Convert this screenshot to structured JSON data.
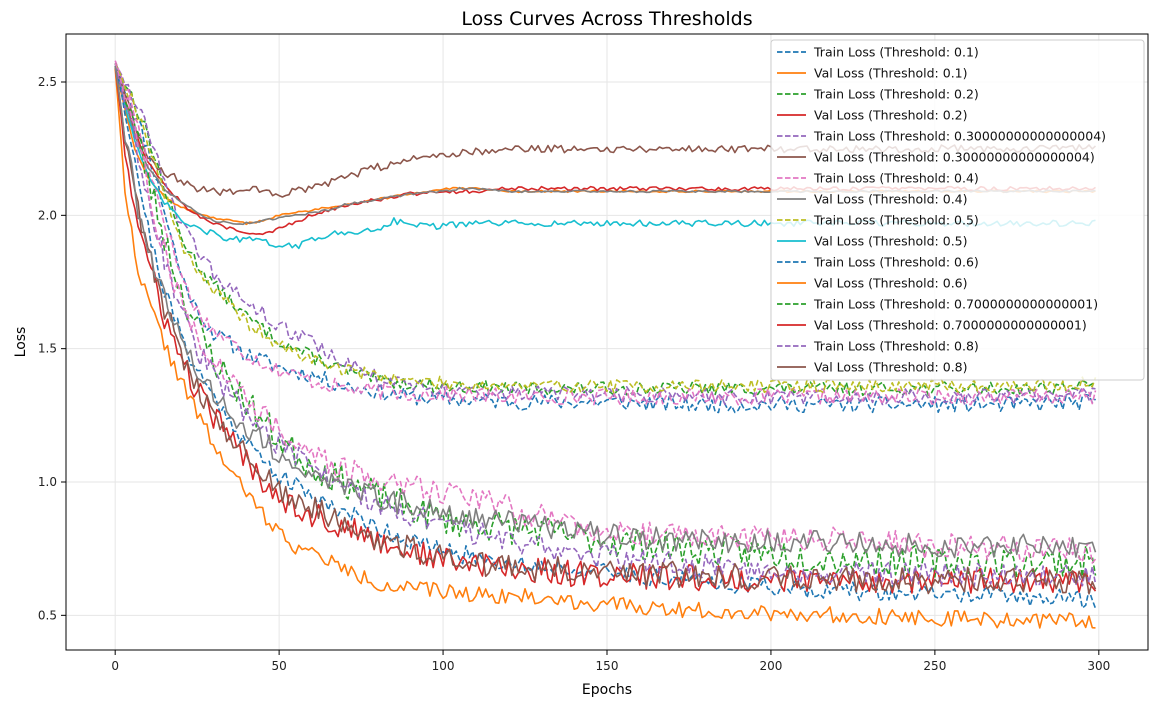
{
  "chart_data": {
    "type": "line",
    "title": "Loss Curves Across Thresholds",
    "xlabel": "Epochs",
    "ylabel": "Loss",
    "xlim": [
      -15,
      315
    ],
    "ylim": [
      0.37,
      2.68
    ],
    "xticks": [
      0,
      50,
      100,
      150,
      200,
      250,
      300
    ],
    "yticks": [
      0.5,
      1.0,
      1.5,
      2.0,
      2.5
    ],
    "xtick_labels": [
      "0",
      "50",
      "100",
      "150",
      "200",
      "250",
      "300"
    ],
    "ytick_labels": [
      "0.5",
      "1.0",
      "1.5",
      "2.0",
      "2.5"
    ],
    "grid": true,
    "legend_position": "top-right",
    "series": [
      {
        "name": "Train Loss (Threshold: 0.1)",
        "color": "#1f77b4",
        "dash": true,
        "x": [
          0,
          5,
          10,
          15,
          20,
          25,
          30,
          40,
          50,
          60,
          70,
          80,
          90,
          100,
          125,
          150,
          175,
          200,
          225,
          250,
          275,
          299
        ],
        "y": [
          2.56,
          2.42,
          2.25,
          2.02,
          1.78,
          1.64,
          1.56,
          1.48,
          1.43,
          1.4,
          1.36,
          1.34,
          1.32,
          1.31,
          1.3,
          1.3,
          1.29,
          1.29,
          1.29,
          1.29,
          1.29,
          1.3
        ],
        "noise": 0.03,
        "seed": 11
      },
      {
        "name": "Val Loss (Threshold: 0.1)",
        "color": "#ff7f0e",
        "dash": false,
        "x": [
          0,
          3,
          6,
          10,
          15,
          20,
          25,
          30,
          35,
          40,
          45,
          50,
          55,
          60,
          65,
          70,
          75,
          80,
          90,
          100,
          105,
          110,
          120,
          150,
          200,
          250,
          299
        ],
        "y": [
          2.55,
          2.4,
          2.25,
          2.14,
          2.07,
          2.03,
          2.01,
          1.99,
          1.98,
          1.97,
          1.98,
          2.0,
          2.01,
          2.02,
          2.03,
          2.04,
          2.05,
          2.06,
          2.08,
          2.1,
          2.1,
          2.1,
          2.09,
          2.09,
          2.09,
          2.09,
          2.09
        ],
        "noise": 0.004,
        "seed": 12
      },
      {
        "name": "Train Loss (Threshold: 0.2)",
        "color": "#2ca02c",
        "dash": true,
        "x": [
          0,
          5,
          10,
          15,
          20,
          25,
          30,
          40,
          50,
          60,
          70,
          80,
          90,
          100,
          125,
          150,
          175,
          200,
          225,
          250,
          275,
          299
        ],
        "y": [
          2.57,
          2.45,
          2.3,
          2.1,
          1.92,
          1.82,
          1.74,
          1.62,
          1.53,
          1.47,
          1.42,
          1.38,
          1.37,
          1.36,
          1.35,
          1.35,
          1.35,
          1.35,
          1.35,
          1.35,
          1.35,
          1.36
        ],
        "noise": 0.025,
        "seed": 13
      },
      {
        "name": "Val Loss (Threshold: 0.2)",
        "color": "#d62728",
        "dash": false,
        "x": [
          0,
          3,
          6,
          10,
          15,
          20,
          25,
          30,
          35,
          40,
          45,
          50,
          60,
          70,
          80,
          90,
          100,
          110,
          120,
          150,
          200,
          250,
          299
        ],
        "y": [
          2.56,
          2.44,
          2.31,
          2.2,
          2.12,
          2.05,
          2.0,
          1.97,
          1.95,
          1.93,
          1.93,
          1.95,
          2.0,
          2.04,
          2.06,
          2.08,
          2.09,
          2.09,
          2.1,
          2.1,
          2.1,
          2.1,
          2.1
        ],
        "noise": 0.008,
        "seed": 14
      },
      {
        "name": "Train Loss (Threshold: 0.30000000000000004)",
        "color": "#9467bd",
        "dash": true,
        "x": [
          0,
          5,
          10,
          15,
          20,
          25,
          30,
          40,
          50,
          60,
          70,
          80,
          90,
          100,
          125,
          150,
          175,
          200,
          225,
          250,
          275,
          299
        ],
        "y": [
          2.57,
          2.46,
          2.32,
          2.15,
          1.97,
          1.86,
          1.78,
          1.67,
          1.59,
          1.52,
          1.45,
          1.39,
          1.36,
          1.34,
          1.33,
          1.33,
          1.32,
          1.32,
          1.32,
          1.32,
          1.32,
          1.33
        ],
        "noise": 0.03,
        "seed": 15
      },
      {
        "name": "Val Loss (Threshold: 0.30000000000000004)",
        "color": "#8c564b",
        "dash": false,
        "x": [
          0,
          3,
          6,
          10,
          15,
          20,
          25,
          30,
          35,
          40,
          45,
          50,
          55,
          60,
          70,
          80,
          90,
          100,
          110,
          120,
          150,
          200,
          250,
          299
        ],
        "y": [
          2.56,
          2.46,
          2.34,
          2.22,
          2.16,
          2.13,
          2.1,
          2.09,
          2.09,
          2.1,
          2.09,
          2.08,
          2.09,
          2.1,
          2.14,
          2.18,
          2.21,
          2.23,
          2.24,
          2.25,
          2.25,
          2.25,
          2.25,
          2.25
        ],
        "noise": 0.015,
        "seed": 16
      },
      {
        "name": "Train Loss (Threshold: 0.4)",
        "color": "#e377c2",
        "dash": true,
        "x": [
          0,
          5,
          10,
          15,
          20,
          25,
          30,
          40,
          50,
          60,
          70,
          80,
          90,
          100,
          125,
          150,
          175,
          200,
          225,
          250,
          275,
          299
        ],
        "y": [
          2.58,
          2.42,
          2.2,
          1.98,
          1.78,
          1.64,
          1.57,
          1.48,
          1.42,
          1.38,
          1.35,
          1.34,
          1.33,
          1.33,
          1.32,
          1.32,
          1.32,
          1.32,
          1.32,
          1.32,
          1.32,
          1.32
        ],
        "noise": 0.03,
        "seed": 17
      },
      {
        "name": "Val Loss (Threshold: 0.4)",
        "color": "#7f7f7f",
        "dash": false,
        "x": [
          0,
          3,
          6,
          10,
          15,
          20,
          25,
          30,
          35,
          40,
          45,
          50,
          55,
          60,
          65,
          70,
          75,
          80,
          90,
          100,
          105,
          110,
          120,
          150,
          200,
          250,
          299
        ],
        "y": [
          2.56,
          2.43,
          2.3,
          2.18,
          2.1,
          2.05,
          2.01,
          1.98,
          1.97,
          1.97,
          1.98,
          1.99,
          2.0,
          2.01,
          2.02,
          2.04,
          2.05,
          2.06,
          2.08,
          2.09,
          2.1,
          2.1,
          2.09,
          2.09,
          2.09,
          2.09,
          2.09
        ],
        "noise": 0.004,
        "seed": 18
      },
      {
        "name": "Train Loss (Threshold: 0.5)",
        "color": "#bcbd22",
        "dash": true,
        "x": [
          0,
          5,
          10,
          15,
          20,
          25,
          30,
          40,
          50,
          60,
          70,
          80,
          90,
          100,
          125,
          150,
          175,
          200,
          225,
          250,
          275,
          299
        ],
        "y": [
          2.57,
          2.44,
          2.28,
          2.08,
          1.9,
          1.8,
          1.72,
          1.6,
          1.51,
          1.46,
          1.42,
          1.4,
          1.38,
          1.37,
          1.36,
          1.36,
          1.36,
          1.36,
          1.36,
          1.36,
          1.36,
          1.37
        ],
        "noise": 0.025,
        "seed": 19
      },
      {
        "name": "Val Loss (Threshold: 0.5)",
        "color": "#17becf",
        "dash": false,
        "x": [
          0,
          3,
          6,
          10,
          15,
          20,
          25,
          30,
          35,
          40,
          45,
          50,
          55,
          60,
          65,
          70,
          75,
          80,
          85,
          90,
          95,
          100,
          110,
          120,
          150,
          200,
          250,
          299
        ],
        "y": [
          2.56,
          2.42,
          2.28,
          2.14,
          2.05,
          1.98,
          1.95,
          1.93,
          1.91,
          1.91,
          1.9,
          1.89,
          1.88,
          1.91,
          1.93,
          1.93,
          1.94,
          1.95,
          1.98,
          1.97,
          1.96,
          1.96,
          1.97,
          1.97,
          1.97,
          1.97,
          1.97,
          1.97
        ],
        "noise": 0.012,
        "seed": 20
      },
      {
        "name": "Train Loss (Threshold: 0.6)",
        "color": "#1f77b4",
        "dash": true,
        "x": [
          0,
          5,
          10,
          15,
          20,
          25,
          30,
          40,
          50,
          60,
          70,
          80,
          90,
          100,
          125,
          150,
          175,
          200,
          225,
          250,
          275,
          299
        ],
        "y": [
          2.57,
          2.28,
          1.95,
          1.72,
          1.55,
          1.42,
          1.32,
          1.15,
          1.02,
          0.95,
          0.89,
          0.83,
          0.78,
          0.74,
          0.69,
          0.66,
          0.63,
          0.61,
          0.59,
          0.58,
          0.57,
          0.56
        ],
        "noise": 0.035,
        "seed": 21
      },
      {
        "name": "Val Loss (Threshold: 0.6)",
        "color": "#ff7f0e",
        "dash": false,
        "x": [
          0,
          3,
          6,
          10,
          15,
          20,
          25,
          30,
          35,
          40,
          45,
          50,
          55,
          60,
          65,
          70,
          80,
          90,
          100,
          110,
          125,
          150,
          175,
          200,
          225,
          250,
          275,
          299
        ],
        "y": [
          2.55,
          2.1,
          1.85,
          1.68,
          1.52,
          1.38,
          1.26,
          1.14,
          1.04,
          0.96,
          0.88,
          0.81,
          0.76,
          0.73,
          0.71,
          0.67,
          0.62,
          0.6,
          0.59,
          0.58,
          0.57,
          0.54,
          0.52,
          0.51,
          0.5,
          0.49,
          0.48,
          0.48
        ],
        "noise": 0.03,
        "seed": 22
      },
      {
        "name": "Train Loss (Threshold: 0.7000000000000001)",
        "color": "#2ca02c",
        "dash": true,
        "x": [
          0,
          5,
          10,
          15,
          20,
          25,
          30,
          40,
          50,
          60,
          70,
          80,
          90,
          100,
          125,
          150,
          175,
          200,
          225,
          250,
          275,
          299
        ],
        "y": [
          2.57,
          2.38,
          2.14,
          1.92,
          1.72,
          1.58,
          1.46,
          1.3,
          1.16,
          1.06,
          1.0,
          0.95,
          0.9,
          0.86,
          0.82,
          0.78,
          0.75,
          0.73,
          0.71,
          0.7,
          0.7,
          0.7
        ],
        "noise": 0.06,
        "seed": 23
      },
      {
        "name": "Val Loss (Threshold: 0.7000000000000001)",
        "color": "#d62728",
        "dash": false,
        "x": [
          0,
          3,
          6,
          10,
          15,
          20,
          25,
          30,
          35,
          40,
          45,
          50,
          55,
          60,
          65,
          70,
          80,
          90,
          100,
          110,
          125,
          150,
          175,
          200,
          225,
          250,
          275,
          299
        ],
        "y": [
          2.56,
          2.25,
          2.02,
          1.82,
          1.62,
          1.46,
          1.34,
          1.25,
          1.16,
          1.08,
          1.01,
          0.95,
          0.91,
          0.88,
          0.85,
          0.83,
          0.78,
          0.74,
          0.71,
          0.69,
          0.67,
          0.65,
          0.64,
          0.63,
          0.63,
          0.63,
          0.63,
          0.63
        ],
        "noise": 0.05,
        "seed": 24
      },
      {
        "name": "Train Loss (Threshold: 0.8)",
        "color": "#9467bd",
        "dash": true,
        "x": [
          0,
          5,
          10,
          15,
          20,
          25,
          30,
          40,
          50,
          60,
          70,
          80,
          90,
          100,
          125,
          150,
          175,
          200,
          225,
          250,
          275,
          299
        ],
        "y": [
          2.56,
          2.34,
          2.08,
          1.84,
          1.64,
          1.5,
          1.4,
          1.26,
          1.14,
          1.05,
          0.98,
          0.92,
          0.88,
          0.83,
          0.77,
          0.72,
          0.69,
          0.67,
          0.66,
          0.65,
          0.65,
          0.65
        ],
        "noise": 0.045,
        "seed": 25
      },
      {
        "name": "Val Loss (Threshold: 0.8)",
        "color": "#8c564b",
        "dash": false,
        "x": [
          0,
          3,
          6,
          10,
          15,
          20,
          25,
          30,
          35,
          40,
          45,
          50,
          55,
          60,
          65,
          70,
          80,
          90,
          100,
          110,
          125,
          150,
          175,
          200,
          225,
          250,
          275,
          299
        ],
        "y": [
          2.56,
          2.3,
          2.08,
          1.88,
          1.66,
          1.48,
          1.36,
          1.26,
          1.18,
          1.1,
          1.04,
          0.98,
          0.93,
          0.9,
          0.87,
          0.84,
          0.79,
          0.75,
          0.72,
          0.7,
          0.68,
          0.66,
          0.65,
          0.64,
          0.63,
          0.63,
          0.63,
          0.63
        ],
        "noise": 0.05,
        "seed": 26
      },
      {
        "name": "",
        "color": "#e377c2",
        "dash": true,
        "x": [
          0,
          5,
          10,
          15,
          20,
          25,
          30,
          40,
          50,
          60,
          70,
          80,
          90,
          100,
          110,
          125,
          150,
          175,
          200,
          225,
          250,
          275,
          299
        ],
        "y": [
          2.57,
          2.38,
          2.1,
          1.86,
          1.68,
          1.55,
          1.46,
          1.32,
          1.2,
          1.1,
          1.04,
          1.01,
          0.99,
          0.97,
          0.95,
          0.88,
          0.82,
          0.8,
          0.79,
          0.78,
          0.76,
          0.75,
          0.74
        ],
        "noise": 0.05,
        "seed": 27
      },
      {
        "name": "",
        "color": "#7f7f7f",
        "dash": false,
        "x": [
          0,
          3,
          6,
          10,
          15,
          20,
          25,
          30,
          35,
          40,
          45,
          50,
          55,
          60,
          65,
          70,
          80,
          90,
          100,
          110,
          125,
          150,
          175,
          200,
          225,
          250,
          275,
          299
        ],
        "y": [
          2.56,
          2.3,
          2.08,
          1.88,
          1.68,
          1.52,
          1.42,
          1.34,
          1.26,
          1.2,
          1.15,
          1.1,
          1.07,
          1.04,
          1.01,
          0.98,
          0.94,
          0.91,
          0.89,
          0.87,
          0.84,
          0.8,
          0.78,
          0.78,
          0.77,
          0.76,
          0.76,
          0.76
        ],
        "noise": 0.045,
        "seed": 28
      }
    ]
  }
}
